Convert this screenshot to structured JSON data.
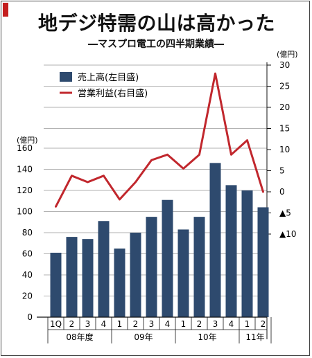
{
  "header": {
    "title": "地デジ特需の山は高かった",
    "subtitle": "―マスプロ電工の四半期業績―"
  },
  "chart_data": {
    "type": "bar",
    "title": "地デジ特需の山は高かった",
    "subtitle": "―マスプロ電工の四半期業績―",
    "categories": [
      "1Q",
      "2",
      "3",
      "4",
      "1",
      "2",
      "3",
      "4",
      "1",
      "2",
      "3",
      "4",
      "1",
      "2"
    ],
    "year_groups": [
      {
        "label": "08年度",
        "count": 4
      },
      {
        "label": "09年",
        "count": 4
      },
      {
        "label": "10年",
        "count": 4
      },
      {
        "label": "11年",
        "count": 2
      }
    ],
    "series": [
      {
        "name": "売上高(左目盛)",
        "type": "bar",
        "axis": "left",
        "color": "#2e4a6e",
        "values": [
          61,
          76,
          74,
          91,
          65,
          80,
          95,
          111,
          83,
          95,
          146,
          125,
          120,
          104
        ]
      },
      {
        "name": "営業利益(右目盛)",
        "type": "line",
        "axis": "right",
        "color": "#c1272d",
        "values": [
          -3.5,
          3.8,
          2.3,
          3.8,
          -1.8,
          2.3,
          7.5,
          8.8,
          5.5,
          8.8,
          28,
          8.8,
          12.2,
          0
        ]
      }
    ],
    "left_axis": {
      "unit": "(億円)",
      "ylim": [
        0,
        160
      ],
      "ticks": [
        "0",
        "20",
        "40",
        "60",
        "80",
        "100",
        "120",
        "140",
        "160"
      ]
    },
    "right_axis": {
      "unit": "(億円)",
      "ylim": [
        -10,
        30
      ],
      "ticks": [
        {
          "v": -10,
          "label": "▲10"
        },
        {
          "v": -5,
          "label": "▲5"
        },
        {
          "v": 0,
          "label": "0"
        },
        {
          "v": 5,
          "label": "5"
        },
        {
          "v": 10,
          "label": "10"
        },
        {
          "v": 15,
          "label": "15"
        },
        {
          "v": 20,
          "label": "20"
        },
        {
          "v": 25,
          "label": "25"
        },
        {
          "v": 30,
          "label": "30"
        }
      ]
    },
    "gridlines": true,
    "legend_position": "top-left"
  }
}
